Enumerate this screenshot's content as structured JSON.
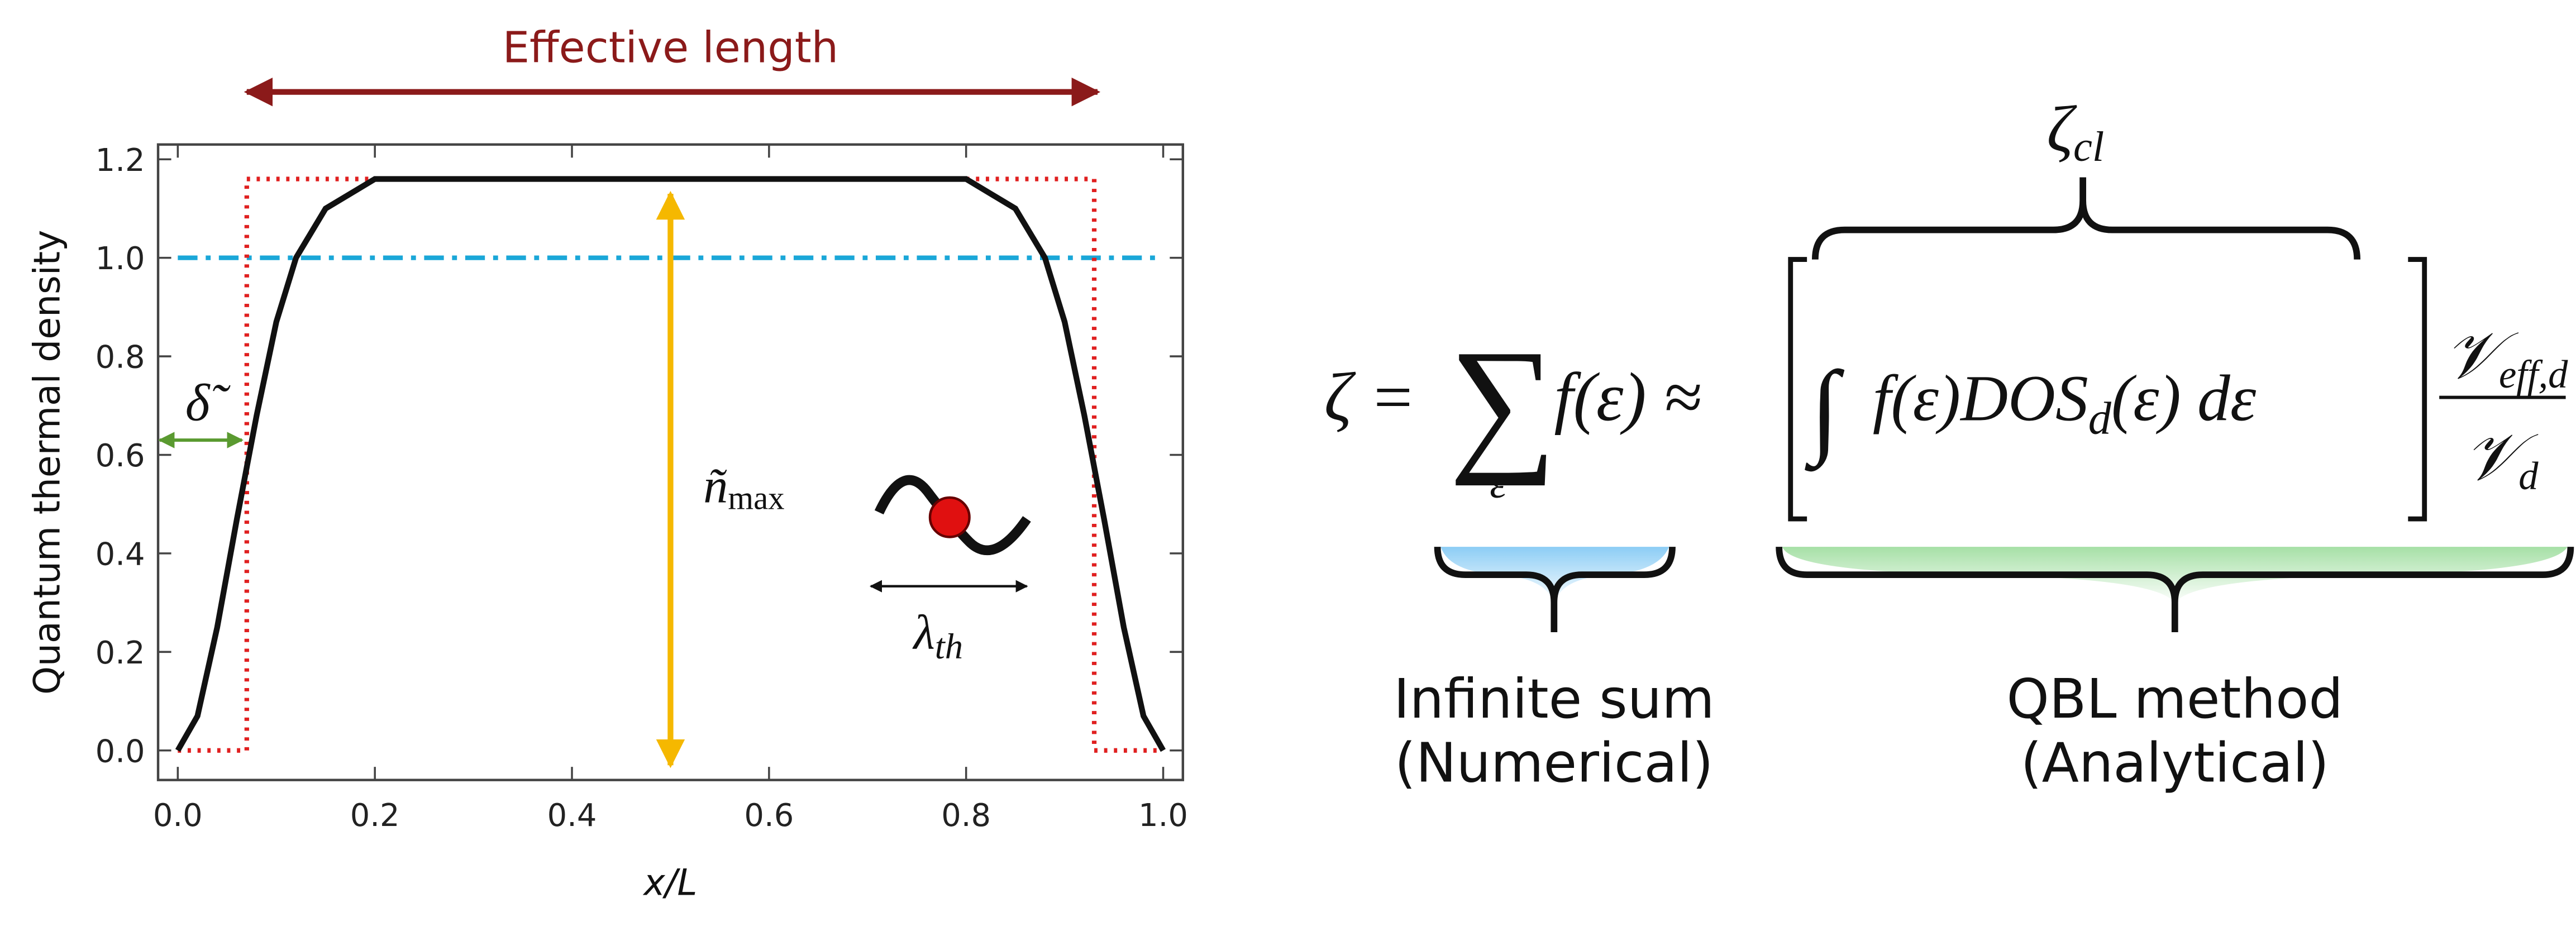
{
  "chart_data": {
    "type": "line",
    "xlabel": "x/L",
    "ylabel": "Quantum thermal density",
    "xlim": [
      -0.02,
      1.02
    ],
    "ylim": [
      -0.06,
      1.23
    ],
    "xticks": [
      {
        "value": 0,
        "label": "0.0"
      },
      {
        "value": 0.2,
        "label": "0.2"
      },
      {
        "value": 0.4,
        "label": "0.4"
      },
      {
        "value": 0.6,
        "label": "0.6"
      },
      {
        "value": 0.8,
        "label": "0.8"
      },
      {
        "value": 1,
        "label": "1.0"
      }
    ],
    "yticks": [
      {
        "value": 0,
        "label": "0.0"
      },
      {
        "value": 0.2,
        "label": "0.2"
      },
      {
        "value": 0.4,
        "label": "0.4"
      },
      {
        "value": 0.6,
        "label": "0.6"
      },
      {
        "value": 0.8,
        "label": "0.8"
      },
      {
        "value": 1,
        "label": "1.0"
      },
      {
        "value": 1.2,
        "label": "1.2"
      }
    ],
    "series": [
      {
        "color": "#111111",
        "style": "solid",
        "x": [
          0,
          0.02,
          0.04,
          0.06,
          0.08,
          0.1,
          0.12,
          0.15,
          0.2,
          0.3,
          0.4,
          0.5,
          0.6,
          0.7,
          0.8,
          0.85,
          0.88,
          0.9,
          0.92,
          0.94,
          0.96,
          0.98,
          1
        ],
        "values": [
          0,
          0.07,
          0.25,
          0.47,
          0.68,
          0.87,
          1.0,
          1.1,
          1.16,
          1.16,
          1.16,
          1.16,
          1.16,
          1.16,
          1.16,
          1.1,
          1.0,
          0.87,
          0.68,
          0.47,
          0.25,
          0.07,
          0
        ]
      },
      {
        "color": "#e02020",
        "style": "dotted",
        "x": [
          0,
          0.07,
          0.07,
          0.93,
          0.93,
          1
        ],
        "values": [
          0,
          0,
          1.16,
          1.16,
          0,
          0
        ]
      },
      {
        "color": "#1aa7d8",
        "style": "dashdot",
        "x": [
          0,
          1
        ],
        "values": [
          1,
          1
        ]
      }
    ],
    "annotations": {
      "effective_length": "Effective length",
      "delta": "δ̃",
      "n_max": "ñ",
      "n_max_sub": "max",
      "lambda": "λ",
      "lambda_sub": "th"
    }
  },
  "equation": {
    "lhs": "ζ =",
    "sum": "∑",
    "sum_index": "ε",
    "term": "f(ε) ≈",
    "integral": "∫",
    "integrand": "f(ε)DOS",
    "dos_sub": "d",
    "integrand_rest": "(ε) dε",
    "numerator": "𝒱",
    "numerator_sub": "eff,d",
    "denominator": "𝒱",
    "denominator_sub": "d",
    "zeta_cl": "ζ",
    "zeta_cl_sub": "cl",
    "left_label": [
      "Infinite sum",
      "(Numerical)"
    ],
    "right_label": [
      "QBL method",
      "(Analytical)"
    ]
  }
}
